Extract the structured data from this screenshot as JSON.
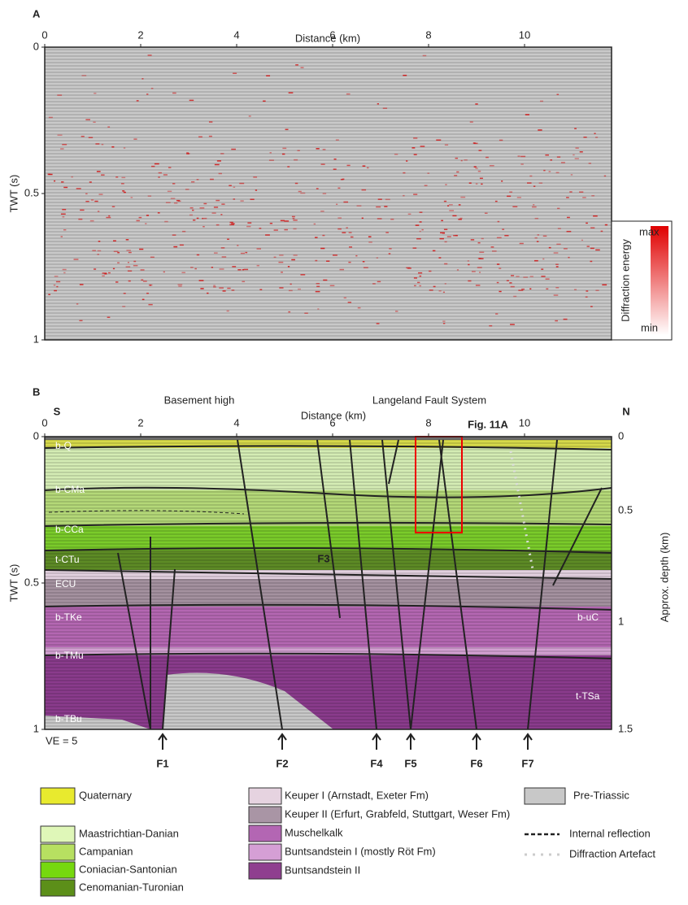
{
  "panel_a": {
    "label": "A",
    "x_axis_title": "Distance (km)",
    "x_ticks": [
      0,
      2,
      4,
      6,
      8,
      10
    ],
    "y_axis_title": "TWT (s)",
    "y_ticks": [
      0,
      0.5,
      1
    ],
    "colorbar": {
      "title": "Diffraction energy",
      "max": "max",
      "min": "min"
    }
  },
  "panel_b": {
    "label": "B",
    "south": "S",
    "north": "N",
    "region_left": "Basement high",
    "region_right": "Langeland Fault System",
    "x_axis_title": "Distance (km)",
    "x_ticks": [
      0,
      2,
      4,
      6,
      8,
      10
    ],
    "y_axis_title": "TWT (s)",
    "y_ticks": [
      0,
      0.5,
      1
    ],
    "y2_axis_title": "Approx. depth (km)",
    "y2_ticks": [
      0,
      0.5,
      1,
      1.5
    ],
    "inset_label": "Fig. 11A",
    "fault_label": "F3",
    "ve": "VE = 5",
    "horizons_left": [
      "b-Q",
      "b-CMa",
      "b-CCa",
      "t-CTu",
      "ECU",
      "b-TKe",
      "b-TMu",
      "b-TBu"
    ],
    "horizons_right": [
      "b-uC",
      "t-TSa"
    ],
    "faults": [
      "F1",
      "F2",
      "F4",
      "F5",
      "F6",
      "F7"
    ]
  },
  "legend": {
    "column_1": [
      "Quaternary",
      "Maastrichtian-Danian",
      "Campanian",
      "Coniacian-Santonian",
      "Cenomanian-Turonian"
    ],
    "column_2": [
      "Keuper I (Arnstadt, Exeter Fm)",
      "Keuper II (Erfurt, Grabfeld, Stuttgart, Weser Fm)",
      "Muschelkalk",
      "Buntsandstein I (mostly Röt Fm)",
      "Buntsandstein II"
    ],
    "column_3": [
      "Pre-Triassic",
      "Internal reflection",
      "Diffraction Artefact"
    ]
  }
}
